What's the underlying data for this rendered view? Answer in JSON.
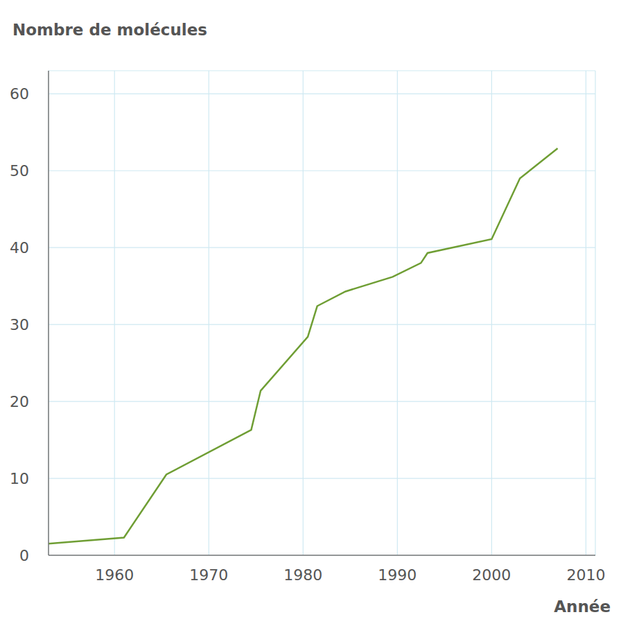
{
  "chart_data": {
    "type": "line",
    "y_label": "Nombre de molécules",
    "x_label": "Année",
    "x": [
      1953,
      1961,
      1965.5,
      1974.5,
      1975.5,
      1980.5,
      1981.5,
      1984.5,
      1989.5,
      1992.5,
      1993.2,
      2000,
      2003,
      2007
    ],
    "values": [
      1.5,
      2.3,
      10.5,
      16.3,
      21.4,
      28.4,
      32.4,
      34.3,
      36.2,
      38,
      39.3,
      41.1,
      49,
      52.9
    ],
    "color": "#6f9e34",
    "xlim": [
      1953,
      2011
    ],
    "xticks": [
      1960,
      1970,
      1980,
      1990,
      2000,
      2010
    ],
    "ylim": [
      0,
      63
    ],
    "yticks": [
      0,
      10,
      20,
      30,
      40,
      50,
      60
    ],
    "grid": true
  }
}
